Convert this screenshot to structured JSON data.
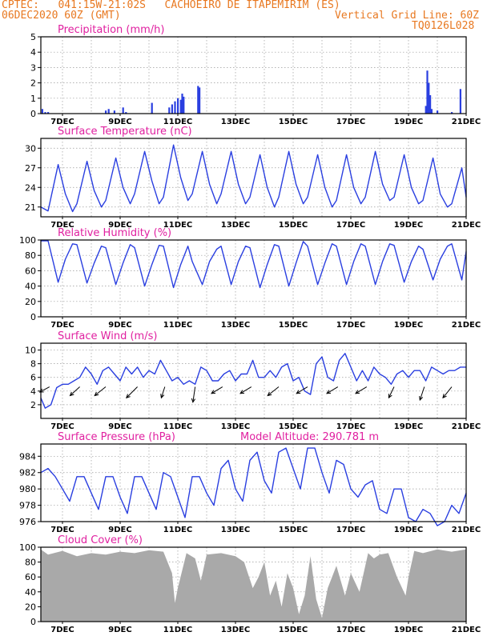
{
  "header": {
    "line1_left": "CPTEC:   041:15W-21:02S   CACHOEIRO DE ITAPEMIRIM (ES)",
    "line2_left": "06DEC2020 60Z (GMT)",
    "line2_right": "Vertical Grid Line: 60Z",
    "line3_right": "TQ0126L028"
  },
  "colors": {
    "header": "#e87820",
    "title": "#e020a0",
    "line": "#2a3fe0",
    "cloud": "#a9a9a9",
    "grid": "#9a9a9a"
  },
  "x_axis": {
    "start_day": 6.25,
    "end_day": 21.0,
    "tick_labels": [
      "7DEC",
      "9DEC",
      "11DEC",
      "13DEC",
      "15DEC",
      "17DEC",
      "19DEC",
      "21DEC"
    ]
  },
  "chart_data": [
    {
      "id": "precip",
      "type": "bar",
      "title": "Precipitation  (mm/h)",
      "ylim": [
        0,
        5
      ],
      "yticks": [
        0,
        1,
        2,
        3,
        4,
        5
      ],
      "x_days": [
        6.3,
        6.4,
        6.5,
        8.5,
        8.6,
        8.8,
        9.1,
        9.2,
        10.1,
        10.7,
        10.8,
        10.9,
        11.0,
        11.1,
        11.15,
        11.2,
        11.7,
        11.75,
        19.6,
        19.65,
        19.7,
        19.75,
        19.8,
        20.0,
        20.5,
        20.8
      ],
      "values": [
        0.3,
        0.1,
        0.1,
        0.2,
        0.3,
        0.2,
        0.4,
        0.1,
        0.7,
        0.4,
        0.6,
        0.8,
        1.0,
        0.9,
        1.3,
        1.1,
        1.8,
        1.7,
        0.5,
        2.8,
        2.0,
        1.2,
        0.3,
        0.2,
        0.1,
        1.6
      ]
    },
    {
      "id": "temp",
      "type": "line",
      "title": "Surface Temperature  (nC)",
      "ylim": [
        19.5,
        31.5
      ],
      "yticks": [
        21,
        24,
        27,
        30
      ],
      "x_days": [
        6.25,
        6.5,
        6.85,
        7.1,
        7.35,
        7.5,
        7.85,
        8.1,
        8.35,
        8.5,
        8.85,
        9.1,
        9.35,
        9.5,
        9.85,
        10.1,
        10.35,
        10.5,
        10.85,
        11.1,
        11.35,
        11.5,
        11.85,
        12.1,
        12.35,
        12.5,
        12.85,
        13.1,
        13.35,
        13.5,
        13.85,
        14.1,
        14.35,
        14.5,
        14.85,
        15.1,
        15.35,
        15.5,
        15.85,
        16.1,
        16.35,
        16.5,
        16.85,
        17.1,
        17.35,
        17.5,
        17.85,
        18.1,
        18.35,
        18.5,
        18.85,
        19.1,
        19.35,
        19.5,
        19.85,
        20.1,
        20.35,
        20.5,
        20.85,
        21.0
      ],
      "values": [
        21.0,
        20.4,
        27.5,
        23.0,
        20.3,
        21.5,
        28.0,
        23.5,
        21.0,
        22.0,
        28.5,
        24.0,
        21.5,
        23.0,
        29.5,
        25.0,
        21.5,
        22.5,
        30.5,
        25.5,
        22.0,
        23.0,
        29.5,
        24.5,
        21.5,
        23.0,
        29.5,
        24.5,
        21.5,
        22.5,
        29.0,
        24.0,
        21.0,
        22.5,
        29.5,
        24.5,
        21.5,
        22.5,
        29.0,
        24.0,
        21.0,
        22.0,
        29.0,
        24.0,
        21.5,
        22.5,
        29.5,
        24.5,
        22.0,
        22.5,
        29.0,
        24.0,
        21.5,
        22.0,
        28.5,
        23.0,
        21.0,
        21.5,
        27.0,
        22.5
      ]
    },
    {
      "id": "rh",
      "type": "line",
      "title": "Relative Humidity  (%)",
      "ylim": [
        0,
        100
      ],
      "yticks": [
        0,
        20,
        40,
        60,
        80,
        100
      ],
      "x_days": [
        6.25,
        6.5,
        6.85,
        7.1,
        7.35,
        7.5,
        7.85,
        8.1,
        8.35,
        8.5,
        8.85,
        9.1,
        9.35,
        9.5,
        9.85,
        10.1,
        10.35,
        10.5,
        10.85,
        11.1,
        11.35,
        11.5,
        11.85,
        12.1,
        12.35,
        12.5,
        12.85,
        13.1,
        13.35,
        13.5,
        13.85,
        14.1,
        14.35,
        14.5,
        14.85,
        15.1,
        15.35,
        15.5,
        15.85,
        16.1,
        16.35,
        16.5,
        16.85,
        17.1,
        17.35,
        17.5,
        17.85,
        18.1,
        18.35,
        18.5,
        18.85,
        19.1,
        19.35,
        19.5,
        19.85,
        20.1,
        20.35,
        20.5,
        20.85,
        21.0
      ],
      "values": [
        99,
        99,
        45,
        75,
        95,
        94,
        44,
        70,
        92,
        90,
        42,
        70,
        94,
        90,
        40,
        68,
        93,
        92,
        38,
        68,
        92,
        72,
        42,
        72,
        88,
        92,
        42,
        72,
        92,
        90,
        38,
        68,
        94,
        92,
        40,
        70,
        98,
        92,
        42,
        70,
        95,
        92,
        42,
        72,
        95,
        92,
        42,
        72,
        95,
        93,
        45,
        72,
        92,
        88,
        48,
        75,
        92,
        95,
        48,
        85
      ]
    },
    {
      "id": "wind",
      "type": "line",
      "title": "Surface Wind  (m/s)",
      "ylim": [
        0,
        11
      ],
      "yticks": [
        2,
        4,
        6,
        8,
        10
      ],
      "x_days": [
        6.25,
        6.4,
        6.6,
        6.8,
        7.0,
        7.2,
        7.4,
        7.6,
        7.8,
        8.0,
        8.2,
        8.4,
        8.6,
        8.8,
        9.0,
        9.2,
        9.4,
        9.6,
        9.8,
        10.0,
        10.2,
        10.4,
        10.6,
        10.8,
        11.0,
        11.2,
        11.4,
        11.6,
        11.8,
        12.0,
        12.2,
        12.4,
        12.6,
        12.8,
        13.0,
        13.2,
        13.4,
        13.6,
        13.8,
        14.0,
        14.2,
        14.4,
        14.6,
        14.8,
        15.0,
        15.2,
        15.4,
        15.6,
        15.8,
        16.0,
        16.2,
        16.4,
        16.6,
        16.8,
        17.0,
        17.2,
        17.4,
        17.6,
        17.8,
        18.0,
        18.2,
        18.4,
        18.6,
        18.8,
        19.0,
        19.2,
        19.4,
        19.6,
        19.8,
        20.0,
        20.2,
        20.4,
        20.6,
        20.8,
        21.0
      ],
      "values": [
        3.0,
        1.5,
        2.0,
        4.5,
        5.0,
        5.0,
        5.5,
        6.0,
        7.5,
        6.5,
        5.0,
        7.0,
        7.5,
        6.5,
        5.5,
        7.5,
        6.5,
        7.5,
        6.0,
        7.0,
        6.5,
        8.5,
        7.0,
        5.5,
        6.0,
        5.0,
        5.5,
        5.0,
        7.5,
        7.0,
        5.5,
        5.5,
        6.5,
        7.0,
        5.5,
        6.5,
        6.5,
        8.5,
        6.0,
        6.0,
        7.0,
        6.0,
        7.5,
        8.0,
        5.5,
        6.0,
        4.0,
        3.5,
        8.0,
        9.0,
        6.0,
        5.5,
        8.5,
        9.5,
        7.5,
        5.5,
        7.0,
        5.5,
        7.5,
        6.5,
        6.0,
        5.0,
        6.5,
        7.0,
        6.0,
        7.0,
        7.0,
        5.5,
        7.5,
        7.0,
        6.5,
        7.0,
        7.0,
        7.5,
        7.5
      ],
      "arrows": {
        "x_days": [
          6.55,
          7.6,
          8.5,
          9.6,
          10.55,
          11.6,
          12.55,
          13.55,
          14.5,
          15.5,
          16.55,
          17.55,
          18.5,
          19.55,
          20.5
        ],
        "u": [
          2.2,
          2.2,
          2.5,
          2.5,
          0.8,
          0.5,
          2.5,
          2.5,
          2.5,
          2.5,
          2.5,
          2.5,
          1.2,
          1.0,
          2.0
        ],
        "v": [
          -1.2,
          -2.0,
          -2.0,
          -2.5,
          -2.5,
          -3.5,
          -1.5,
          -1.5,
          -2.0,
          -1.5,
          -1.5,
          -1.5,
          -2.5,
          -3.0,
          -2.5
        ]
      }
    },
    {
      "id": "pres",
      "type": "line",
      "title": "Surface Pressure  (hPa)",
      "extra_label": "Model Altitude:  290.781  m",
      "ylim": [
        976,
        985.5
      ],
      "yticks": [
        976,
        978,
        980,
        982,
        984
      ],
      "x_days": [
        6.25,
        6.5,
        6.75,
        7.0,
        7.25,
        7.5,
        7.75,
        8.0,
        8.25,
        8.5,
        8.75,
        9.0,
        9.25,
        9.5,
        9.75,
        10.0,
        10.25,
        10.5,
        10.75,
        11.0,
        11.25,
        11.5,
        11.75,
        12.0,
        12.25,
        12.5,
        12.75,
        13.0,
        13.25,
        13.5,
        13.75,
        14.0,
        14.25,
        14.5,
        14.75,
        15.0,
        15.25,
        15.5,
        15.75,
        16.0,
        16.25,
        16.5,
        16.75,
        17.0,
        17.25,
        17.5,
        17.75,
        18.0,
        18.25,
        18.5,
        18.75,
        19.0,
        19.25,
        19.5,
        19.75,
        20.0,
        20.25,
        20.5,
        20.75,
        21.0
      ],
      "values": [
        982.0,
        982.5,
        981.5,
        980.0,
        978.5,
        981.5,
        981.5,
        979.5,
        977.5,
        981.5,
        981.5,
        979.0,
        977.0,
        981.5,
        981.5,
        979.5,
        977.5,
        982.0,
        981.5,
        979.0,
        976.5,
        981.5,
        981.5,
        979.5,
        978.0,
        982.5,
        983.5,
        980.0,
        978.5,
        983.5,
        984.5,
        981.0,
        979.5,
        984.5,
        985.0,
        982.5,
        980.0,
        985.0,
        985.0,
        982.0,
        979.5,
        983.5,
        983.0,
        980.0,
        979.0,
        980.5,
        981.0,
        977.5,
        977.0,
        980.0,
        980.0,
        976.5,
        976.0,
        977.5,
        977.0,
        975.5,
        976.0,
        978.0,
        977.0,
        979.5
      ]
    },
    {
      "id": "cloud",
      "type": "area",
      "title": "Cloud Cover  (%)",
      "ylim": [
        0,
        100
      ],
      "yticks": [
        0,
        20,
        40,
        60,
        80,
        100
      ],
      "x_days": [
        6.25,
        6.5,
        7.0,
        7.5,
        8.0,
        8.5,
        9.0,
        9.5,
        10.0,
        10.5,
        10.8,
        10.9,
        11.0,
        11.3,
        11.6,
        11.8,
        12.0,
        12.5,
        13.0,
        13.3,
        13.6,
        13.8,
        14.0,
        14.2,
        14.4,
        14.6,
        14.8,
        15.0,
        15.2,
        15.4,
        15.6,
        15.8,
        16.0,
        16.2,
        16.5,
        16.8,
        17.0,
        17.3,
        17.6,
        17.8,
        18.0,
        18.3,
        18.6,
        18.9,
        19.0,
        19.2,
        19.5,
        20.0,
        20.5,
        21.0
      ],
      "values": [
        97,
        90,
        95,
        88,
        92,
        90,
        94,
        92,
        96,
        94,
        65,
        25,
        45,
        92,
        85,
        55,
        90,
        92,
        88,
        80,
        45,
        60,
        80,
        35,
        55,
        20,
        65,
        45,
        10,
        35,
        88,
        30,
        5,
        45,
        75,
        35,
        65,
        40,
        92,
        85,
        90,
        92,
        60,
        35,
        60,
        95,
        92,
        97,
        94,
        97
      ]
    }
  ]
}
